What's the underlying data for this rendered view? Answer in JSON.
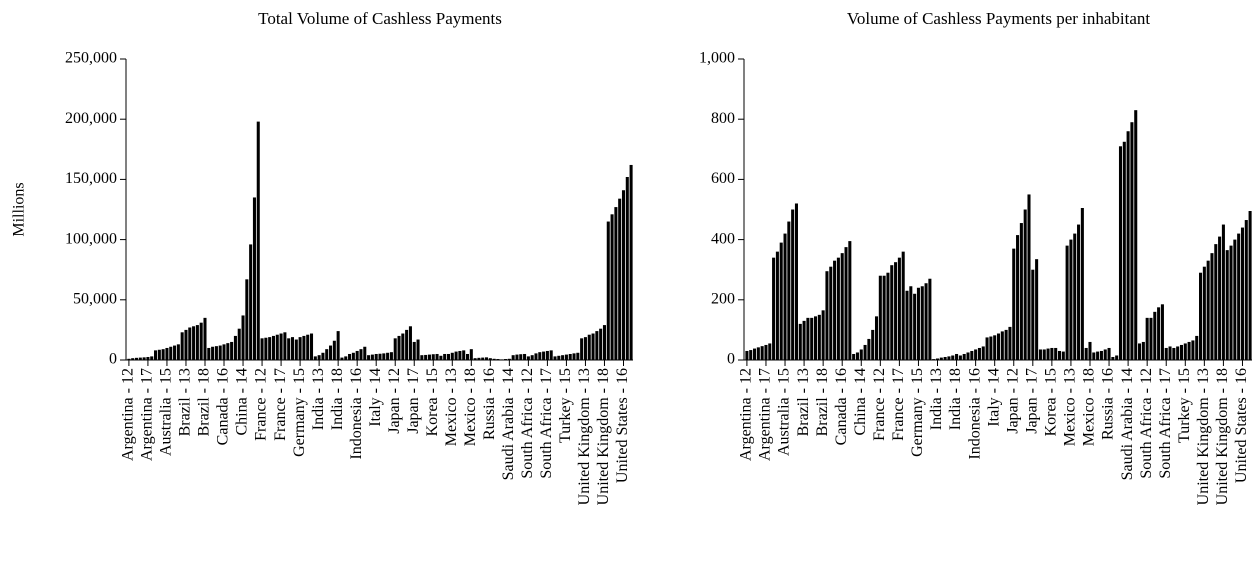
{
  "chart_data": [
    {
      "type": "bar",
      "title": "Total Volume of Cashless Payments",
      "y_label": "Millions",
      "color": "#000000",
      "ylim": [
        0,
        250000
      ],
      "yticks": [
        0,
        {
          "value": 50000,
          "label": "50,000"
        },
        {
          "value": 100000,
          "label": "100,000"
        },
        {
          "value": 150000,
          "label": "150,000"
        },
        {
          "value": 200000,
          "label": "200,000"
        },
        {
          "value": 250000,
          "label": "250,000"
        }
      ],
      "categories": [
        "Argentina - 12",
        null,
        null,
        null,
        null,
        "Argentina - 17",
        null,
        null,
        null,
        null,
        "Australia - 15",
        null,
        null,
        null,
        null,
        "Brazil - 13",
        null,
        null,
        null,
        null,
        "Brazil - 18",
        null,
        null,
        null,
        null,
        "Canada - 16",
        null,
        null,
        null,
        null,
        "China - 14",
        null,
        null,
        null,
        null,
        "France - 12",
        null,
        null,
        null,
        null,
        "France - 17",
        null,
        null,
        null,
        null,
        "Germany - 15",
        null,
        null,
        null,
        null,
        "India - 13",
        null,
        null,
        null,
        null,
        "India - 18",
        null,
        null,
        null,
        null,
        "Indonesia - 16",
        null,
        null,
        null,
        null,
        "Italy - 14",
        null,
        null,
        null,
        null,
        "Japan - 12",
        null,
        null,
        null,
        null,
        "Japan - 17",
        null,
        null,
        null,
        null,
        "Korea - 15",
        null,
        null,
        null,
        null,
        "Mexico - 13",
        null,
        null,
        null,
        null,
        "Mexico - 18",
        null,
        null,
        null,
        null,
        "Russia - 16",
        null,
        null,
        null,
        null,
        "Saudi Arabia - 14",
        null,
        null,
        null,
        null,
        "South Africa - 12",
        null,
        null,
        null,
        null,
        "South Africa - 17",
        null,
        null,
        null,
        null,
        "Turkey - 15",
        null,
        null,
        null,
        null,
        "United Kingdom - 13",
        null,
        null,
        null,
        null,
        "United Kingdom - 18",
        null,
        null,
        null,
        null,
        "United States - 16",
        null,
        null
      ],
      "values": [
        1000,
        1500,
        1800,
        2000,
        2200,
        2500,
        3000,
        8000,
        8500,
        9000,
        10000,
        11000,
        12000,
        13000,
        23000,
        25000,
        27000,
        28000,
        29000,
        31000,
        35000,
        10000,
        11000,
        11500,
        12000,
        13000,
        14000,
        15000,
        20000,
        26000,
        37000,
        67000,
        96000,
        135000,
        198000,
        18000,
        18500,
        19000,
        20000,
        21000,
        22000,
        23000,
        18000,
        19000,
        17000,
        19000,
        20000,
        21000,
        22000,
        3000,
        4000,
        6000,
        9000,
        12000,
        16000,
        24000,
        2000,
        3000,
        5000,
        6000,
        7500,
        9000,
        11000,
        4000,
        4500,
        5000,
        5200,
        5500,
        6000,
        6500,
        18000,
        20000,
        22000,
        25000,
        28000,
        15000,
        17000,
        4000,
        4200,
        4500,
        4800,
        5000,
        3500,
        5000,
        5000,
        6000,
        7000,
        7500,
        8000,
        5000,
        9000,
        1500,
        1800,
        2000,
        2200,
        1500,
        1000,
        800,
        500,
        800,
        1000,
        4000,
        4500,
        4800,
        5000,
        3000,
        4000,
        5500,
        6500,
        7000,
        7500,
        8000,
        3000,
        3500,
        4000,
        4500,
        5000,
        5500,
        6000,
        18000,
        19000,
        21000,
        22000,
        24000,
        26000,
        29000,
        115000,
        121000,
        127000,
        134000,
        141000,
        152000,
        162000
      ]
    },
    {
      "type": "bar",
      "title": "Volume of Cashless Payments per inhabitant",
      "color": "#000000",
      "ylim": [
        0,
        1000
      ],
      "yticks": [
        0,
        200,
        400,
        600,
        800,
        {
          "value": 1000,
          "label": "1,000"
        }
      ],
      "categories": [
        "Argentina - 12",
        null,
        null,
        null,
        null,
        "Argentina - 17",
        null,
        null,
        null,
        null,
        "Australia - 15",
        null,
        null,
        null,
        null,
        "Brazil - 13",
        null,
        null,
        null,
        null,
        "Brazil - 18",
        null,
        null,
        null,
        null,
        "Canada - 16",
        null,
        null,
        null,
        null,
        "China - 14",
        null,
        null,
        null,
        null,
        "France - 12",
        null,
        null,
        null,
        null,
        "France - 17",
        null,
        null,
        null,
        null,
        "Germany - 15",
        null,
        null,
        null,
        null,
        "India - 13",
        null,
        null,
        null,
        null,
        "India - 18",
        null,
        null,
        null,
        null,
        "Indonesia - 16",
        null,
        null,
        null,
        null,
        "Italy - 14",
        null,
        null,
        null,
        null,
        "Japan - 12",
        null,
        null,
        null,
        null,
        "Japan - 17",
        null,
        null,
        null,
        null,
        "Korea - 15",
        null,
        null,
        null,
        null,
        "Mexico - 13",
        null,
        null,
        null,
        null,
        "Mexico - 18",
        null,
        null,
        null,
        null,
        "Russia - 16",
        null,
        null,
        null,
        null,
        "Saudi Arabia - 14",
        null,
        null,
        null,
        null,
        "South Africa - 12",
        null,
        null,
        null,
        null,
        "South Africa - 17",
        null,
        null,
        null,
        null,
        "Turkey - 15",
        null,
        null,
        null,
        null,
        "United Kingdom - 13",
        null,
        null,
        null,
        null,
        "United Kingdom - 18",
        null,
        null,
        null,
        null,
        "United States - 16",
        null,
        null
      ],
      "values": [
        30,
        33,
        38,
        42,
        46,
        50,
        55,
        340,
        360,
        390,
        420,
        460,
        500,
        520,
        120,
        130,
        140,
        140,
        145,
        150,
        165,
        295,
        310,
        330,
        340,
        355,
        375,
        395,
        20,
        25,
        35,
        50,
        70,
        100,
        145,
        280,
        280,
        290,
        315,
        325,
        340,
        360,
        230,
        245,
        220,
        240,
        245,
        255,
        270,
        3,
        5,
        8,
        10,
        12,
        15,
        20,
        15,
        20,
        25,
        30,
        35,
        40,
        45,
        75,
        78,
        82,
        88,
        95,
        100,
        110,
        370,
        415,
        455,
        500,
        550,
        300,
        335,
        35,
        35,
        38,
        40,
        40,
        30,
        28,
        380,
        400,
        420,
        450,
        505,
        40,
        60,
        25,
        28,
        30,
        35,
        40,
        10,
        15,
        710,
        725,
        760,
        790,
        830,
        55,
        60,
        140,
        140,
        160,
        175,
        185,
        40,
        45,
        40,
        45,
        50,
        55,
        60,
        65,
        80,
        290,
        310,
        330,
        355,
        385,
        410,
        450,
        365,
        380,
        400,
        420,
        440,
        465,
        495
      ]
    }
  ]
}
